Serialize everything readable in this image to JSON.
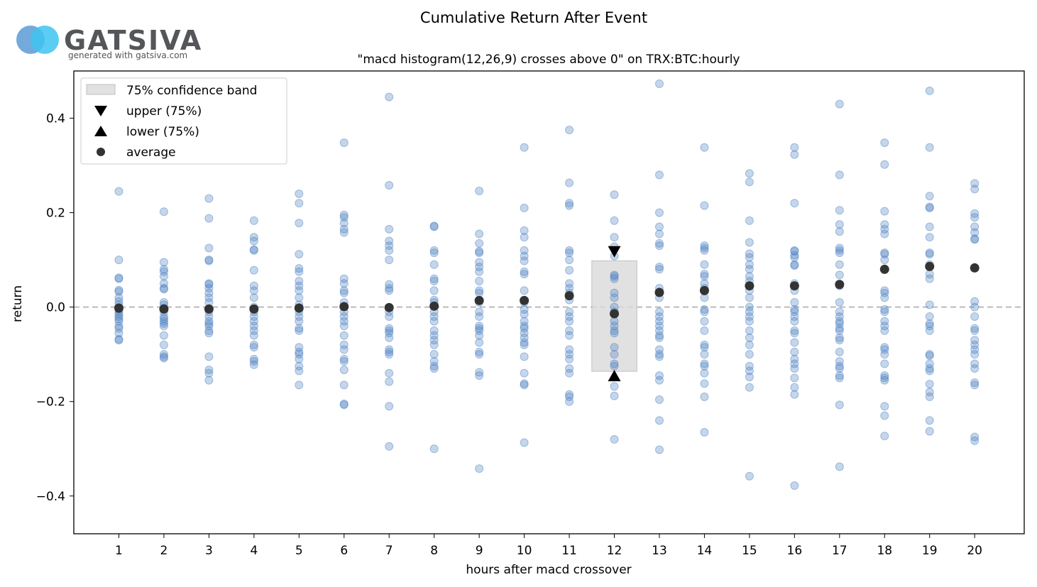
{
  "logo": {
    "name": "GATSIVA",
    "tagline": "generated with gatsiva.com",
    "colors": {
      "left_circle": "#5b9bd5",
      "right_circle": "#40c4f0",
      "text": "#55565a"
    }
  },
  "chart_data": {
    "type": "scatter",
    "title": "Cumulative Return After Event",
    "subtitle": "\"macd histogram(12,26,9) crosses above 0\" on TRX:BTC:hourly",
    "xlabel": "hours after macd crossover",
    "ylabel": "return",
    "xlim": [
      0,
      21.1
    ],
    "ylim": [
      -0.48,
      0.5
    ],
    "x_ticks": [
      1,
      2,
      3,
      4,
      5,
      6,
      7,
      8,
      9,
      10,
      11,
      12,
      13,
      14,
      15,
      16,
      17,
      18,
      19,
      20
    ],
    "y_ticks": [
      -0.4,
      -0.2,
      0.0,
      0.2,
      0.4
    ],
    "y_tick_labels": [
      "−0.4",
      "−0.2",
      "0.0",
      "0.2",
      "0.4"
    ],
    "zero_line": true,
    "colors": {
      "points": "#4a7fc0",
      "average": "#333333",
      "band": "#d9d9d9",
      "markers": "#000000",
      "zero_line": "#bbbbbb"
    },
    "legend": {
      "position": "top-left",
      "entries": [
        "75% confidence band",
        "upper (75%)",
        "lower (75%)",
        "average"
      ]
    },
    "confidence_band": {
      "x": 12,
      "upper": 0.098,
      "lower": -0.136
    },
    "upper_marker": {
      "x": 12,
      "y": 0.117
    },
    "lower_marker": {
      "x": 12,
      "y": -0.145
    },
    "averages": [
      {
        "x": 1,
        "y": -0.002
      },
      {
        "x": 2,
        "y": -0.004
      },
      {
        "x": 3,
        "y": -0.004
      },
      {
        "x": 4,
        "y": -0.004
      },
      {
        "x": 5,
        "y": -0.002
      },
      {
        "x": 6,
        "y": 0.001
      },
      {
        "x": 7,
        "y": -0.001
      },
      {
        "x": 8,
        "y": 0.002
      },
      {
        "x": 9,
        "y": 0.014
      },
      {
        "x": 10,
        "y": 0.014
      },
      {
        "x": 11,
        "y": 0.024
      },
      {
        "x": 12,
        "y": -0.014
      },
      {
        "x": 13,
        "y": 0.031
      },
      {
        "x": 14,
        "y": 0.035
      },
      {
        "x": 15,
        "y": 0.045
      },
      {
        "x": 16,
        "y": 0.045
      },
      {
        "x": 17,
        "y": 0.048
      },
      {
        "x": 18,
        "y": 0.08
      },
      {
        "x": 19,
        "y": 0.086
      },
      {
        "x": 20,
        "y": 0.083
      }
    ],
    "scatter": [
      {
        "x": 1,
        "values": [
          0.245,
          0.1,
          0.062,
          0.06,
          0.036,
          0.033,
          0.02,
          0.012,
          0.005,
          -0.002,
          -0.005,
          -0.01,
          -0.015,
          -0.02,
          -0.025,
          -0.03,
          -0.04,
          -0.045,
          -0.055,
          -0.07,
          -0.068
        ]
      },
      {
        "x": 2,
        "values": [
          0.202,
          0.095,
          0.08,
          0.075,
          0.065,
          0.05,
          0.04,
          0.038,
          0.01,
          0.005,
          -0.002,
          -0.01,
          -0.02,
          -0.025,
          -0.03,
          -0.035,
          -0.04,
          -0.06,
          -0.08,
          -0.1,
          -0.105,
          -0.108
        ]
      },
      {
        "x": 3,
        "values": [
          0.23,
          0.188,
          0.125,
          0.1,
          0.098,
          0.05,
          0.048,
          0.04,
          0.03,
          0.02,
          0.01,
          -0.01,
          -0.02,
          -0.03,
          -0.035,
          -0.04,
          -0.05,
          -0.055,
          -0.105,
          -0.133,
          -0.14,
          -0.155
        ]
      },
      {
        "x": 4,
        "values": [
          0.183,
          0.148,
          0.14,
          0.122,
          0.12,
          0.078,
          0.045,
          0.035,
          0.02,
          0.0,
          -0.01,
          -0.02,
          -0.03,
          -0.04,
          -0.05,
          -0.06,
          -0.08,
          -0.085,
          -0.11,
          -0.115,
          -0.122
        ]
      },
      {
        "x": 5,
        "values": [
          0.24,
          0.22,
          0.178,
          0.112,
          0.082,
          0.075,
          0.055,
          0.045,
          0.035,
          0.02,
          0.005,
          -0.01,
          -0.02,
          -0.03,
          -0.045,
          -0.05,
          -0.085,
          -0.095,
          -0.1,
          -0.11,
          -0.125,
          -0.135,
          -0.165
        ]
      },
      {
        "x": 6,
        "values": [
          0.348,
          0.195,
          0.19,
          0.178,
          0.165,
          0.158,
          0.06,
          0.05,
          0.035,
          0.03,
          0.01,
          -0.01,
          -0.02,
          -0.03,
          -0.04,
          -0.06,
          -0.08,
          -0.09,
          -0.11,
          -0.115,
          -0.133,
          -0.165,
          -0.207,
          -0.205
        ]
      },
      {
        "x": 7,
        "values": [
          0.445,
          0.258,
          0.165,
          0.14,
          0.13,
          0.12,
          0.1,
          0.048,
          0.04,
          0.035,
          -0.01,
          -0.02,
          -0.045,
          -0.05,
          -0.055,
          -0.065,
          -0.09,
          -0.095,
          -0.1,
          -0.14,
          -0.158,
          -0.21,
          -0.295
        ]
      },
      {
        "x": 8,
        "values": [
          0.172,
          0.17,
          0.12,
          0.115,
          0.09,
          0.06,
          0.055,
          0.035,
          0.015,
          0.01,
          -0.01,
          -0.02,
          -0.03,
          -0.05,
          -0.06,
          -0.07,
          -0.08,
          -0.1,
          -0.115,
          -0.125,
          -0.13,
          -0.3
        ]
      },
      {
        "x": 9,
        "values": [
          0.246,
          0.155,
          0.135,
          0.118,
          0.115,
          0.095,
          0.085,
          0.075,
          0.055,
          0.035,
          0.03,
          0.01,
          -0.01,
          -0.02,
          -0.04,
          -0.045,
          -0.05,
          -0.06,
          -0.075,
          -0.095,
          -0.1,
          -0.138,
          -0.145,
          -0.342
        ]
      },
      {
        "x": 10,
        "values": [
          0.338,
          0.21,
          0.162,
          0.148,
          0.12,
          0.108,
          0.098,
          0.075,
          0.07,
          0.035,
          0.01,
          -0.005,
          -0.015,
          -0.03,
          -0.04,
          -0.045,
          -0.055,
          -0.065,
          -0.075,
          -0.08,
          -0.105,
          -0.14,
          -0.162,
          -0.165,
          -0.287
        ]
      },
      {
        "x": 11,
        "values": [
          0.375,
          0.263,
          0.22,
          0.215,
          0.12,
          0.115,
          0.1,
          0.078,
          0.05,
          0.04,
          0.03,
          0.015,
          -0.01,
          -0.02,
          -0.03,
          -0.05,
          -0.06,
          -0.09,
          -0.1,
          -0.11,
          -0.13,
          -0.14,
          -0.185,
          -0.19,
          -0.2
        ]
      },
      {
        "x": 12,
        "values": [
          0.238,
          0.183,
          0.148,
          0.128,
          0.108,
          0.068,
          0.065,
          0.06,
          0.03,
          0.02,
          0.0,
          -0.01,
          -0.03,
          -0.04,
          -0.05,
          -0.055,
          -0.085,
          -0.1,
          -0.12,
          -0.125,
          -0.168,
          -0.188,
          -0.28
        ]
      },
      {
        "x": 13,
        "values": [
          0.473,
          0.28,
          0.2,
          0.17,
          0.155,
          0.135,
          0.13,
          0.085,
          0.08,
          0.04,
          0.02,
          -0.01,
          -0.02,
          -0.03,
          -0.04,
          -0.05,
          -0.06,
          -0.065,
          -0.09,
          -0.1,
          -0.105,
          -0.145,
          -0.155,
          -0.196,
          -0.24,
          -0.302
        ]
      },
      {
        "x": 14,
        "values": [
          0.338,
          0.215,
          0.13,
          0.125,
          0.12,
          0.09,
          0.07,
          0.065,
          0.05,
          0.04,
          0.02,
          -0.005,
          -0.01,
          -0.03,
          -0.05,
          -0.08,
          -0.085,
          -0.1,
          -0.12,
          -0.125,
          -0.14,
          -0.162,
          -0.19,
          -0.265
        ]
      },
      {
        "x": 15,
        "values": [
          0.283,
          0.265,
          0.183,
          0.137,
          0.113,
          0.105,
          0.09,
          0.08,
          0.065,
          0.055,
          0.035,
          0.02,
          0.0,
          -0.01,
          -0.02,
          -0.03,
          -0.05,
          -0.065,
          -0.08,
          -0.1,
          -0.125,
          -0.135,
          -0.148,
          -0.17,
          -0.358
        ]
      },
      {
        "x": 16,
        "values": [
          0.338,
          0.323,
          0.22,
          0.12,
          0.118,
          0.11,
          0.105,
          0.09,
          0.088,
          0.05,
          0.035,
          0.01,
          -0.005,
          -0.01,
          -0.02,
          -0.03,
          -0.05,
          -0.055,
          -0.075,
          -0.095,
          -0.11,
          -0.12,
          -0.13,
          -0.15,
          -0.17,
          -0.185,
          -0.378
        ]
      },
      {
        "x": 17,
        "values": [
          0.43,
          0.28,
          0.205,
          0.175,
          0.16,
          0.125,
          0.12,
          0.115,
          0.09,
          0.068,
          0.045,
          0.01,
          -0.01,
          -0.02,
          -0.03,
          -0.035,
          -0.045,
          -0.05,
          -0.065,
          -0.07,
          -0.095,
          -0.115,
          -0.125,
          -0.13,
          -0.145,
          -0.15,
          -0.207,
          -0.338
        ]
      },
      {
        "x": 18,
        "values": [
          0.348,
          0.302,
          0.203,
          0.175,
          0.165,
          0.155,
          0.115,
          0.112,
          0.1,
          0.035,
          0.03,
          0.02,
          -0.005,
          -0.01,
          -0.03,
          -0.04,
          -0.05,
          -0.085,
          -0.09,
          -0.1,
          -0.12,
          -0.145,
          -0.15,
          -0.155,
          -0.21,
          -0.23,
          -0.273
        ]
      },
      {
        "x": 19,
        "values": [
          0.458,
          0.338,
          0.235,
          0.21,
          0.212,
          0.17,
          0.148,
          0.115,
          0.112,
          0.09,
          0.07,
          0.06,
          0.005,
          -0.02,
          -0.035,
          -0.04,
          -0.05,
          -0.1,
          -0.103,
          -0.12,
          -0.13,
          -0.135,
          -0.163,
          -0.18,
          -0.19,
          -0.24,
          -0.263
        ]
      },
      {
        "x": 20,
        "values": [
          0.262,
          0.25,
          0.198,
          0.19,
          0.17,
          0.158,
          0.145,
          0.143,
          0.012,
          0.0,
          -0.02,
          -0.045,
          -0.05,
          -0.07,
          -0.08,
          -0.09,
          -0.1,
          -0.12,
          -0.13,
          -0.16,
          -0.165,
          -0.275,
          -0.283
        ]
      }
    ]
  }
}
